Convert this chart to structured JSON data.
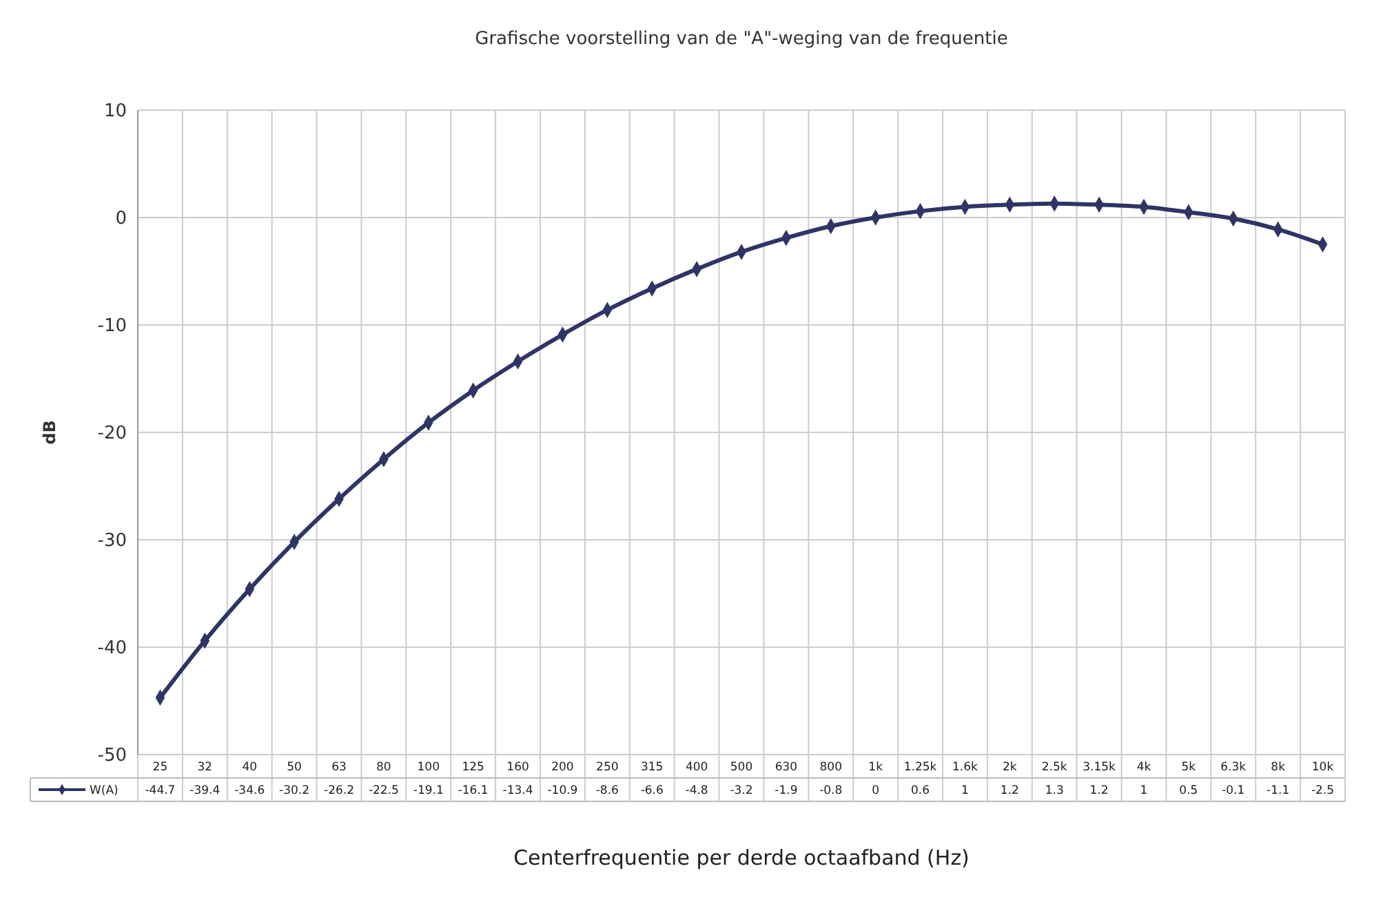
{
  "chart_data": {
    "type": "line",
    "title": "Grafische voorstelling van de \"A\"-weging van de frequentie",
    "xlabel": "Centerfrequentie per derde octaafband (Hz)",
    "ylabel": "dB",
    "categories": [
      "25",
      "32",
      "40",
      "50",
      "63",
      "80",
      "100",
      "125",
      "160",
      "200",
      "250",
      "315",
      "400",
      "500",
      "630",
      "800",
      "1k",
      "1.25k",
      "1.6k",
      "2k",
      "2.5k",
      "3.15k",
      "4k",
      "5k",
      "6.3k",
      "8k",
      "10k"
    ],
    "series": [
      {
        "name": "W(A)",
        "color": "#2e3566",
        "values": [
          -44.7,
          -39.4,
          -34.6,
          -30.2,
          -26.2,
          -22.5,
          -19.1,
          -16.1,
          -13.4,
          -10.9,
          -8.6,
          -6.6,
          -4.8,
          -3.2,
          -1.9,
          -0.8,
          0,
          0.6,
          1,
          1.2,
          1.3,
          1.2,
          1,
          0.5,
          -0.1,
          -1.1,
          -2.5
        ]
      }
    ],
    "ylim": [
      -50,
      10
    ],
    "yticks": [
      -50,
      -40,
      -30,
      -20,
      -10,
      0,
      10
    ],
    "grid": true,
    "marker": "diamond",
    "line_style": "solid",
    "data_labels": true,
    "legend": "bottom"
  }
}
